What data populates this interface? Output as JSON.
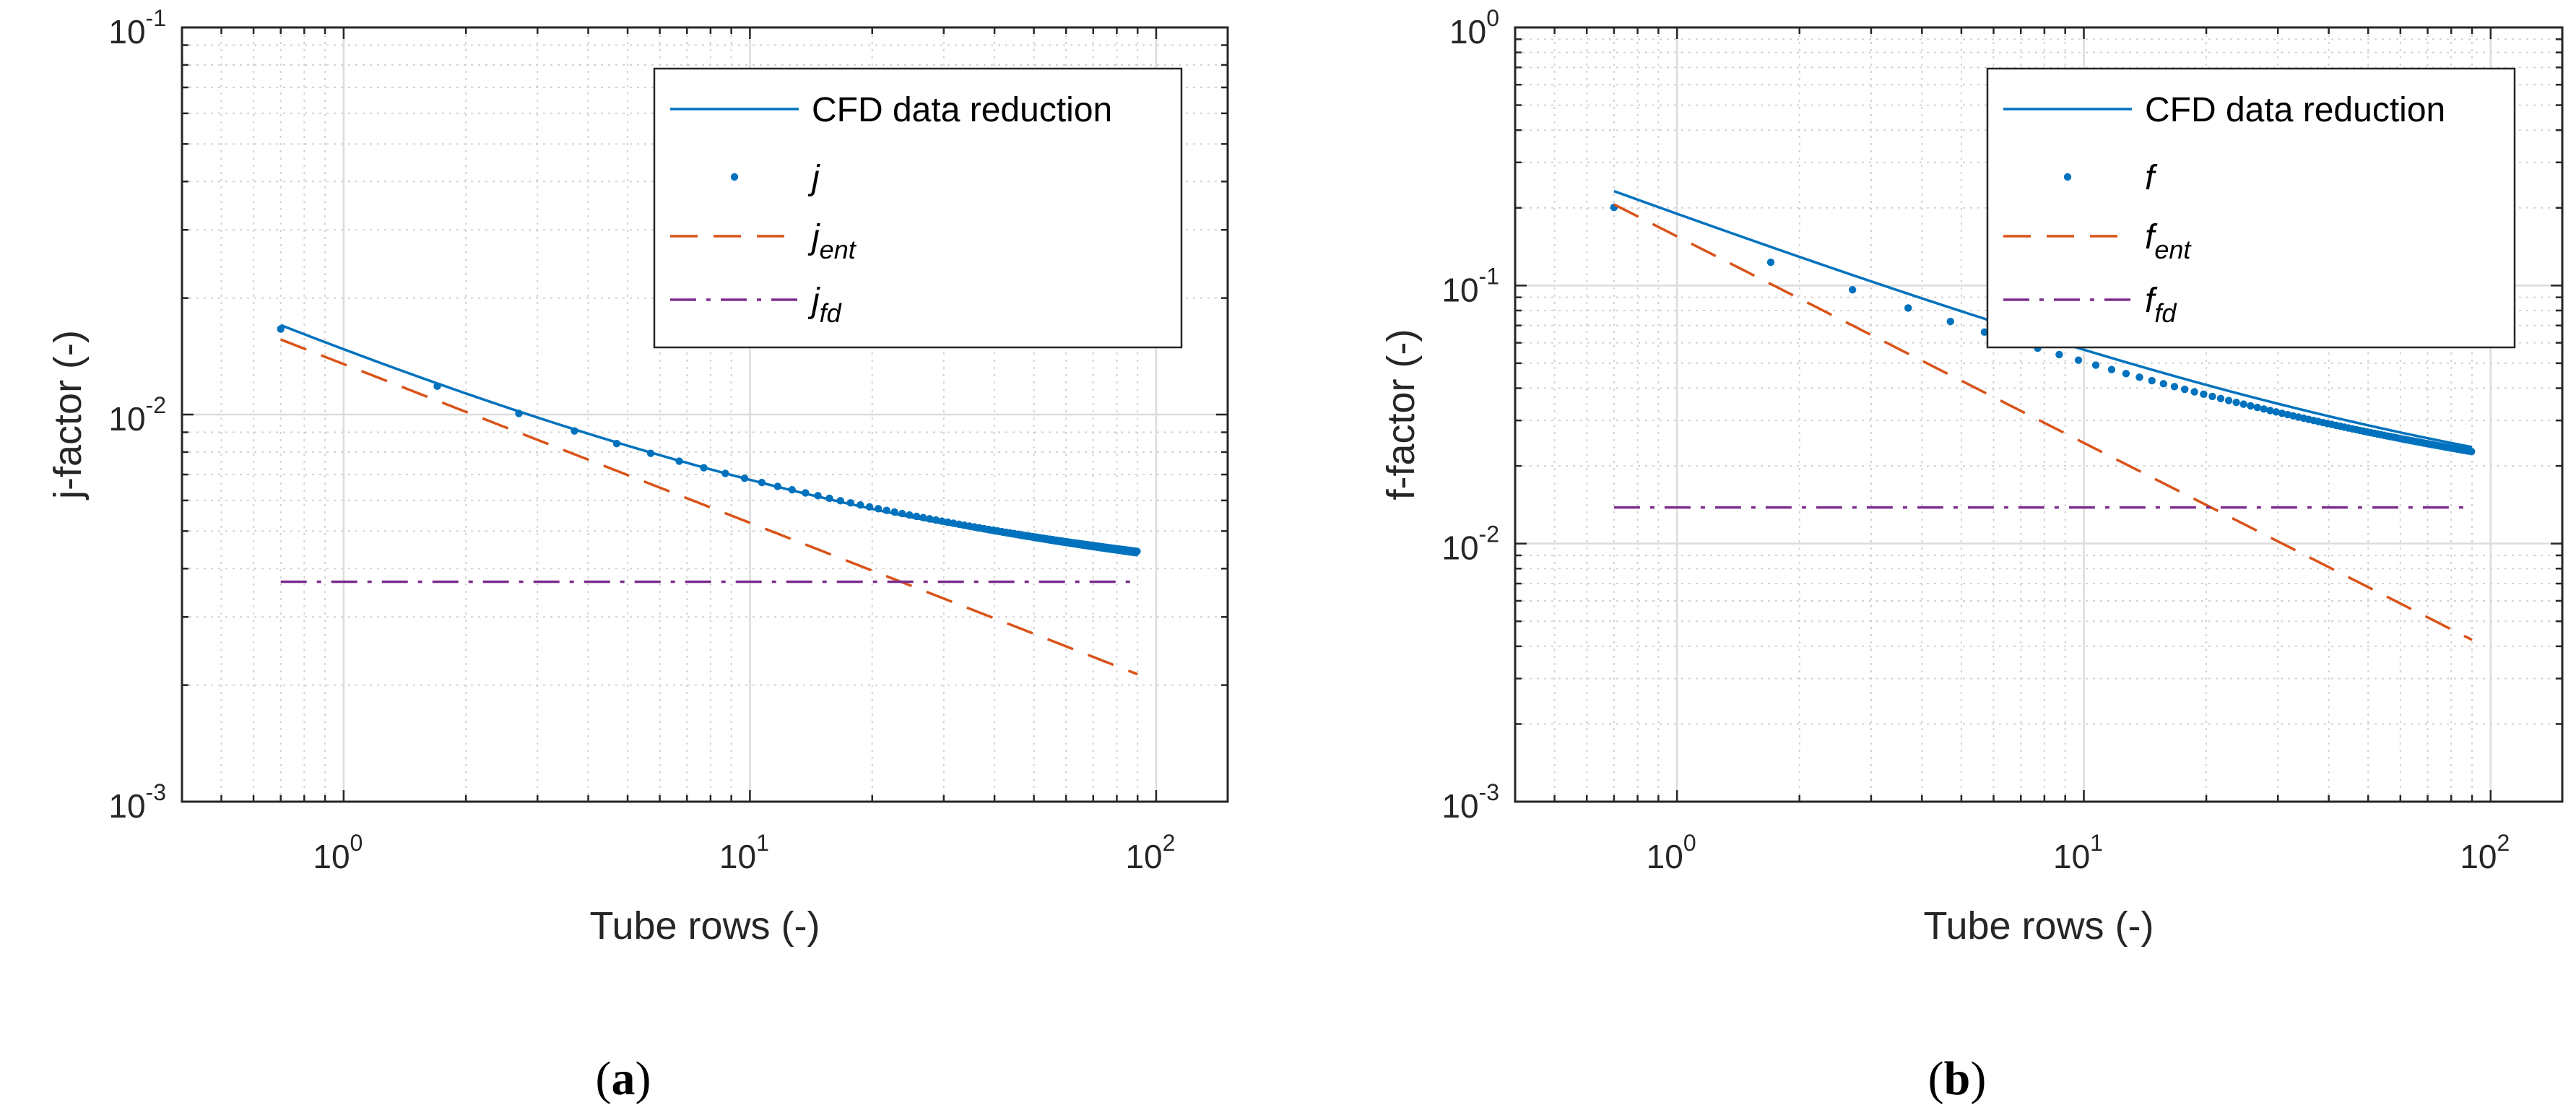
{
  "chart_data": [
    {
      "id": "a",
      "type": "line",
      "panel_label_open": "(",
      "panel_label_letter": "a",
      "panel_label_close": ")",
      "xlabel": "Tube rows (-)",
      "ylabel": "j-factor (-)",
      "xscale": "log",
      "yscale": "log",
      "xlim": [
        0.4,
        150
      ],
      "ylim": [
        0.001,
        0.1
      ],
      "grid": true,
      "minor_grid": true,
      "xticks": [
        {
          "base": "10",
          "exp": "0",
          "value": 1
        },
        {
          "base": "10",
          "exp": "1",
          "value": 10
        },
        {
          "base": "10",
          "exp": "2",
          "value": 100
        }
      ],
      "yticks": [
        {
          "base": "10",
          "exp": "-3",
          "value": 0.001
        },
        {
          "base": "10",
          "exp": "-2",
          "value": 0.01
        },
        {
          "base": "10",
          "exp": "-1",
          "value": 0.1
        }
      ],
      "legend_position": "top-right",
      "legend": [
        {
          "main": "CFD data reduction",
          "sub": "",
          "style": "solid"
        },
        {
          "main": "j",
          "sub": "",
          "style": "dots"
        },
        {
          "main": "j",
          "sub": "ent",
          "style": "dashed"
        },
        {
          "main": "j",
          "sub": "fd",
          "style": "dashdot"
        }
      ],
      "series": [
        {
          "name": "CFD data reduction",
          "style": "solid",
          "color": "#0072BD",
          "model": {
            "type": "asymptotic",
            "a": 0.01165,
            "b": 0.5,
            "c": 0.0031
          },
          "x_range": [
            0.7,
            90
          ]
        },
        {
          "name": "j",
          "style": "dots",
          "color": "#0072BD",
          "model": {
            "type": "asymptotic",
            "a": 0.0112,
            "b": 0.5,
            "c": 0.00325
          },
          "x_start": 0.7,
          "x_step": 1,
          "x_end": 90
        },
        {
          "name": "j_ent",
          "style": "dashed",
          "color": "#D95319",
          "model": {
            "type": "power",
            "a": 0.0135,
            "b": 0.41
          },
          "x_range": [
            0.7,
            90
          ]
        },
        {
          "name": "j_fd",
          "style": "dashdot",
          "color": "#7E2F8E",
          "model": {
            "type": "constant",
            "c": 0.0037
          },
          "x_range": [
            0.7,
            90
          ]
        }
      ]
    },
    {
      "id": "b",
      "type": "line",
      "panel_label_open": "(",
      "panel_label_letter": "b",
      "panel_label_close": ")",
      "xlabel": "Tube rows (-)",
      "ylabel": "f-factor (-)",
      "xscale": "log",
      "yscale": "log",
      "xlim": [
        0.4,
        150
      ],
      "ylim": [
        0.001,
        1
      ],
      "grid": true,
      "minor_grid": true,
      "xticks": [
        {
          "base": "10",
          "exp": "0",
          "value": 1
        },
        {
          "base": "10",
          "exp": "1",
          "value": 10
        },
        {
          "base": "10",
          "exp": "2",
          "value": 100
        }
      ],
      "yticks": [
        {
          "base": "10",
          "exp": "-3",
          "value": 0.001
        },
        {
          "base": "10",
          "exp": "-2",
          "value": 0.01
        },
        {
          "base": "10",
          "exp": "-1",
          "value": 0.1
        },
        {
          "base": "10",
          "exp": "0",
          "value": 1
        }
      ],
      "legend_position": "top-right",
      "legend": [
        {
          "main": "CFD data reduction",
          "sub": "",
          "style": "solid"
        },
        {
          "main": "f",
          "sub": "",
          "style": "dots"
        },
        {
          "main": "f",
          "sub": "ent",
          "style": "dashed"
        },
        {
          "main": "f",
          "sub": "fd",
          "style": "dashdot"
        }
      ],
      "series": [
        {
          "name": "CFD data reduction",
          "style": "solid",
          "color": "#0072BD",
          "model": {
            "type": "asymptotic",
            "a": 0.178,
            "b": 0.6,
            "c": 0.0117
          },
          "x_range": [
            0.7,
            90
          ]
        },
        {
          "name": "f",
          "style": "dots",
          "color": "#0072BD",
          "model": {
            "type": "asymptotic",
            "a": 0.152,
            "b": 0.6,
            "c": 0.0125
          },
          "x_start": 0.7,
          "x_step": 1,
          "x_end": 90
        },
        {
          "name": "f_ent",
          "style": "dashed",
          "color": "#D95319",
          "model": {
            "type": "power",
            "a": 0.155,
            "b": 0.8
          },
          "x_range": [
            0.7,
            90
          ]
        },
        {
          "name": "f_fd",
          "style": "dashdot",
          "color": "#7E2F8E",
          "model": {
            "type": "constant",
            "c": 0.0138
          },
          "x_range": [
            0.7,
            90
          ]
        }
      ]
    }
  ]
}
